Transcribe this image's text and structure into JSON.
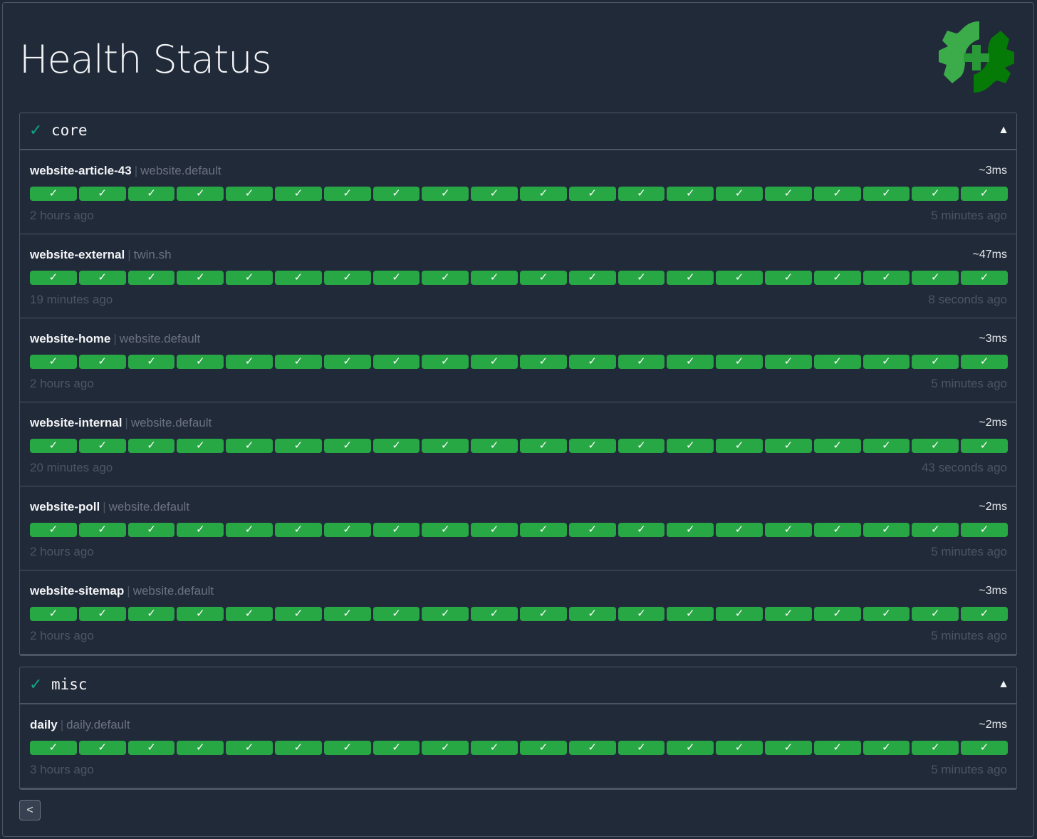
{
  "page": {
    "title": "Health Status",
    "logo_icon": "gear-plus-icon",
    "back_label": "<"
  },
  "colors": {
    "success": "#28a745",
    "group_check": "#10a37f",
    "background": "#212a39"
  },
  "groups": [
    {
      "name": "core",
      "status_icon": "✓",
      "toggle": "▲",
      "endpoints": [
        {
          "name": "website-article-43",
          "group": "website.default",
          "response_time": "~3ms",
          "oldest": "2 hours ago",
          "newest": "5 minutes ago",
          "results": 20
        },
        {
          "name": "website-external",
          "group": "twin.sh",
          "response_time": "~47ms",
          "oldest": "19 minutes ago",
          "newest": "8 seconds ago",
          "results": 20
        },
        {
          "name": "website-home",
          "group": "website.default",
          "response_time": "~3ms",
          "oldest": "2 hours ago",
          "newest": "5 minutes ago",
          "results": 20
        },
        {
          "name": "website-internal",
          "group": "website.default",
          "response_time": "~2ms",
          "oldest": "20 minutes ago",
          "newest": "43 seconds ago",
          "results": 20
        },
        {
          "name": "website-poll",
          "group": "website.default",
          "response_time": "~2ms",
          "oldest": "2 hours ago",
          "newest": "5 minutes ago",
          "results": 20
        },
        {
          "name": "website-sitemap",
          "group": "website.default",
          "response_time": "~3ms",
          "oldest": "2 hours ago",
          "newest": "5 minutes ago",
          "results": 20
        }
      ]
    },
    {
      "name": "misc",
      "status_icon": "✓",
      "toggle": "▲",
      "endpoints": [
        {
          "name": "daily",
          "group": "daily.default",
          "response_time": "~2ms",
          "oldest": "3 hours ago",
          "newest": "5 minutes ago",
          "results": 20
        }
      ]
    }
  ],
  "result_glyph": "✓"
}
